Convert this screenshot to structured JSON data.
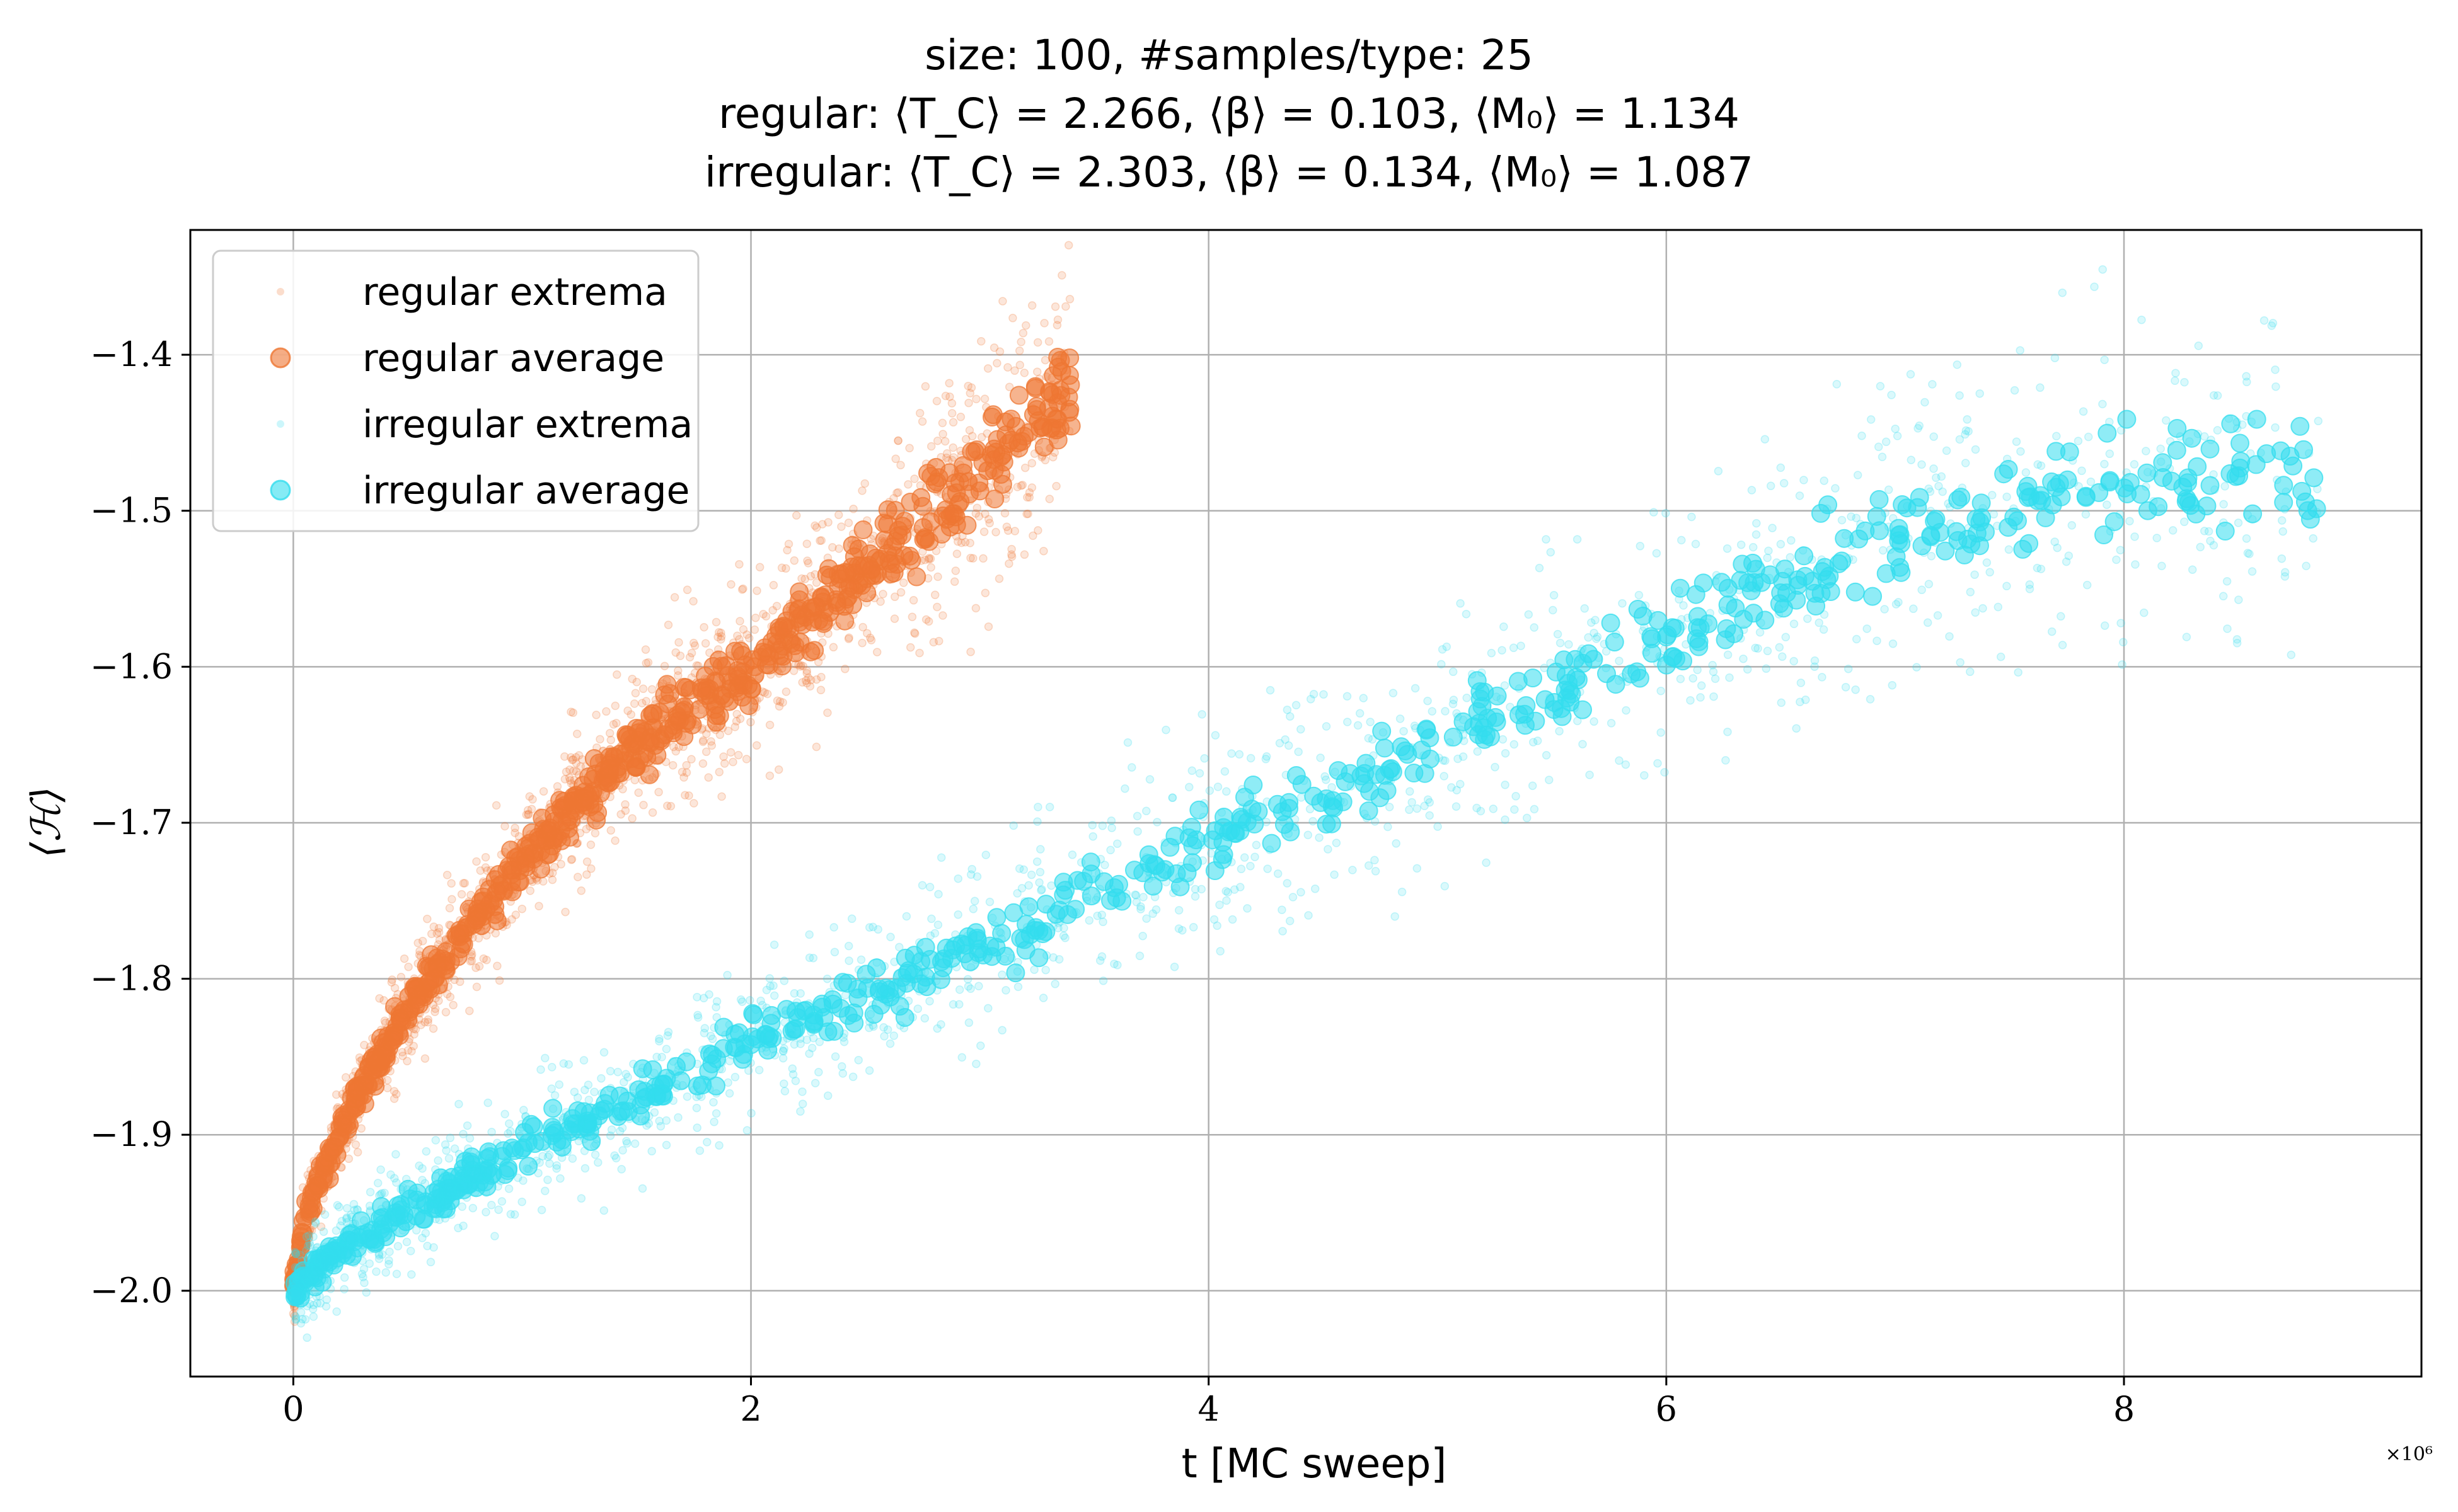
{
  "chart_data": {
    "type": "scatter",
    "title": [
      "size: 100, #samples/type: 25",
      "regular: ⟨T_C⟩ = 2.266, ⟨β⟩ = 0.103, ⟨M₀⟩ = 1.134",
      "irregular: ⟨T_C⟩ = 2.303, ⟨β⟩ = 0.134, ⟨M₀⟩ = 1.087"
    ],
    "xlabel": "t [MC sweep]",
    "ylabel": "⟨ℋ⟩",
    "x_multiplier": "×10⁶",
    "xlim": [
      -0.45,
      9.3
    ],
    "ylim": [
      -2.055,
      -1.32
    ],
    "xticks": [
      0,
      2,
      4,
      6,
      8
    ],
    "xtick_labels": [
      "0",
      "2",
      "4",
      "6",
      "8"
    ],
    "yticks": [
      -2.0,
      -1.9,
      -1.8,
      -1.7,
      -1.6,
      -1.5,
      -1.4
    ],
    "ytick_labels": [
      "−2.0",
      "−1.9",
      "−1.8",
      "−1.7",
      "−1.6",
      "−1.5",
      "−1.4"
    ],
    "grid": true,
    "legend_position": "top-left",
    "legend": [
      "regular extrema",
      "regular average",
      "irregular extrema",
      "irregular average"
    ],
    "series": [
      {
        "name": "regular extrema",
        "color": "#ee7733",
        "kind": "extrema",
        "band": 0.035,
        "x": [
          0.0,
          0.05,
          0.1,
          0.2,
          0.35,
          0.5,
          0.75,
          1.0,
          1.3,
          1.6,
          2.0,
          2.4,
          2.8,
          3.1,
          3.4
        ],
        "y": [
          -2.0,
          -1.955,
          -1.935,
          -1.9,
          -1.855,
          -1.82,
          -1.77,
          -1.725,
          -1.68,
          -1.64,
          -1.6,
          -1.55,
          -1.5,
          -1.46,
          -1.42
        ]
      },
      {
        "name": "regular average",
        "color": "#ee7733",
        "kind": "average",
        "band": 0.012,
        "x": [
          0.0,
          0.05,
          0.1,
          0.2,
          0.35,
          0.5,
          0.75,
          1.0,
          1.3,
          1.6,
          2.0,
          2.4,
          2.8,
          3.1,
          3.4
        ],
        "y": [
          -2.0,
          -1.955,
          -1.935,
          -1.9,
          -1.855,
          -1.82,
          -1.77,
          -1.725,
          -1.68,
          -1.64,
          -1.6,
          -1.55,
          -1.5,
          -1.46,
          -1.42
        ]
      },
      {
        "name": "irregular extrema",
        "color": "#33ddee",
        "kind": "extrema",
        "band": 0.045,
        "x": [
          0.0,
          0.2,
          0.5,
          1.0,
          1.5,
          2.0,
          2.5,
          3.0,
          3.5,
          4.0,
          4.5,
          5.0,
          5.5,
          6.0,
          6.5,
          7.0,
          7.5,
          8.0,
          8.5,
          8.85
        ],
        "y": [
          -2.0,
          -1.975,
          -1.95,
          -1.91,
          -1.875,
          -1.84,
          -1.81,
          -1.78,
          -1.745,
          -1.71,
          -1.68,
          -1.65,
          -1.615,
          -1.58,
          -1.545,
          -1.52,
          -1.5,
          -1.48,
          -1.48,
          -1.48
        ]
      },
      {
        "name": "irregular average",
        "color": "#33ddee",
        "kind": "average",
        "band": 0.014,
        "x": [
          0.0,
          0.2,
          0.5,
          1.0,
          1.5,
          2.0,
          2.5,
          3.0,
          3.5,
          4.0,
          4.5,
          5.0,
          5.5,
          6.0,
          6.5,
          7.0,
          7.5,
          8.0,
          8.5,
          8.85
        ],
        "y": [
          -2.0,
          -1.975,
          -1.95,
          -1.91,
          -1.875,
          -1.84,
          -1.81,
          -1.78,
          -1.745,
          -1.71,
          -1.68,
          -1.65,
          -1.615,
          -1.58,
          -1.545,
          -1.52,
          -1.5,
          -1.48,
          -1.48,
          -1.48
        ]
      }
    ]
  }
}
